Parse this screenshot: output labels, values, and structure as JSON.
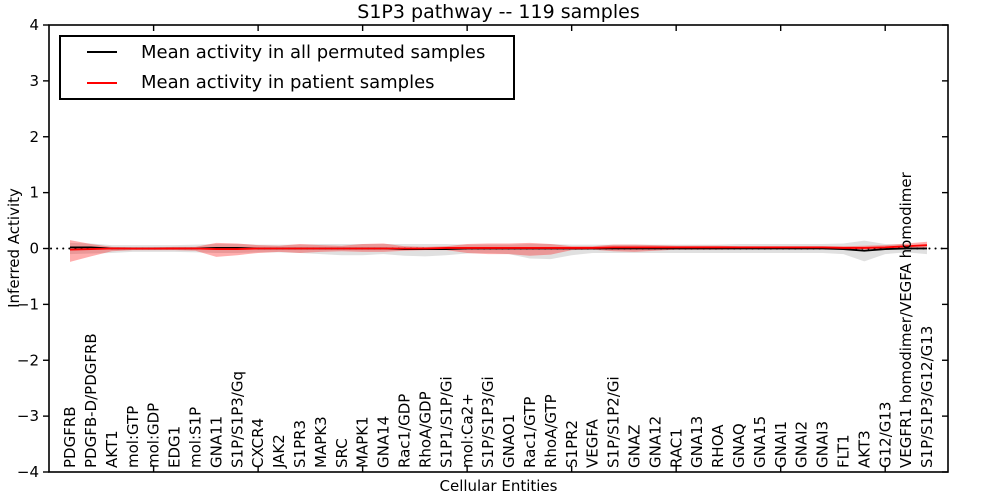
{
  "chart_data": {
    "type": "line",
    "title": "S1P3 pathway -- 119 samples",
    "xlabel": "Cellular Entities",
    "ylabel": "Inferred Activity",
    "ylim": [
      -4,
      4
    ],
    "yticks": [
      4,
      3,
      2,
      1,
      0,
      -1,
      -2,
      -3,
      -4
    ],
    "ytick_labels": [
      "4",
      "3",
      "2",
      "1",
      "0",
      "−1",
      "−2",
      "−3",
      "−4"
    ],
    "grid": false,
    "legend_position": "upper left",
    "zero_line": {
      "style": "dotted",
      "color": "#000000",
      "y": 0
    },
    "categories": [
      "PDGFRB",
      "PDGFB-D/PDGFRB",
      "AKT1",
      "mol:GTP",
      "mol:GDP",
      "EDG1",
      "mol:S1P",
      "GNA11",
      "S1P/S1P3/Gq",
      "CXCR4",
      "JAK2",
      "S1PR3",
      "MAPK3",
      "SRC",
      "MAPK1",
      "GNA14",
      "Rac1/GDP",
      "RhoA/GDP",
      "S1P1/S1P/Gi",
      "mol:Ca2+",
      "S1P/S1P3/Gi",
      "GNAO1",
      "Rac1/GTP",
      "RhoA/GTP",
      "S1PR2",
      "VEGFA",
      "S1P/S1P2/Gi",
      "GNAZ",
      "GNA12",
      "RAC1",
      "GNA13",
      "RHOA",
      "GNAQ",
      "GNA15",
      "GNAI1",
      "GNAI2",
      "GNAI3",
      "FLT1",
      "AKT3",
      "G12/G13",
      "VEGFR1 homodimer/VEGFA homodimer",
      "S1P/S1P3/G12/G13"
    ],
    "series": [
      {
        "name": "Mean activity in all permuted samples",
        "color": "#000000",
        "band_fill": "rgba(0,0,0,0.12)",
        "values": [
          0.02,
          0.02,
          0,
          0,
          0,
          0,
          0,
          0.01,
          0.01,
          0,
          0,
          0,
          0,
          0,
          0,
          0,
          -0.01,
          -0.01,
          -0.01,
          0,
          0,
          0,
          0,
          0,
          0,
          0,
          0,
          0,
          0,
          0,
          0,
          0,
          0,
          0,
          0,
          0,
          0,
          -0.01,
          -0.04,
          -0.01,
          0,
          0
        ],
        "band_lower": [
          -0.1,
          -0.09,
          -0.08,
          -0.06,
          -0.06,
          -0.06,
          -0.07,
          -0.08,
          -0.08,
          -0.07,
          -0.07,
          -0.08,
          -0.1,
          -0.12,
          -0.12,
          -0.1,
          -0.13,
          -0.14,
          -0.12,
          -0.09,
          -0.08,
          -0.1,
          -0.18,
          -0.19,
          -0.12,
          -0.08,
          -0.08,
          -0.08,
          -0.08,
          -0.08,
          -0.08,
          -0.08,
          -0.08,
          -0.08,
          -0.08,
          -0.08,
          -0.08,
          -0.1,
          -0.23,
          -0.1,
          -0.07,
          -0.1
        ],
        "band_upper": [
          0.1,
          0.09,
          0.06,
          0.06,
          0.06,
          0.06,
          0.07,
          0.08,
          0.08,
          0.07,
          0.07,
          0.07,
          0.08,
          0.08,
          0.08,
          0.08,
          0.08,
          0.08,
          0.08,
          0.07,
          0.07,
          0.07,
          0.08,
          0.08,
          0.07,
          0.07,
          0.07,
          0.07,
          0.07,
          0.07,
          0.07,
          0.07,
          0.08,
          0.08,
          0.08,
          0.08,
          0.08,
          0.09,
          0.14,
          0.08,
          0.07,
          0.06
        ]
      },
      {
        "name": "Mean activity in patient samples",
        "color": "#ff0000",
        "band_fill": "rgba(255,0,0,0.32)",
        "values": [
          -0.02,
          -0.01,
          0,
          0,
          0,
          0,
          0,
          -0.01,
          -0.01,
          0,
          0,
          0,
          0,
          0,
          0,
          0,
          0,
          0,
          0.01,
          0.01,
          0.01,
          0.01,
          0.01,
          0.01,
          0.01,
          0.01,
          0.02,
          0.02,
          0.02,
          0.02,
          0.02,
          0.02,
          0.02,
          0.02,
          0.02,
          0.02,
          0.02,
          0.01,
          0.01,
          0.02,
          0.04,
          0.06
        ],
        "band_lower": [
          -0.24,
          -0.14,
          -0.05,
          -0.03,
          -0.03,
          -0.03,
          -0.04,
          -0.15,
          -0.12,
          -0.08,
          -0.06,
          -0.08,
          -0.06,
          -0.05,
          -0.06,
          -0.06,
          -0.04,
          -0.03,
          -0.03,
          -0.08,
          -0.1,
          -0.1,
          -0.13,
          -0.11,
          -0.03,
          -0.02,
          -0.05,
          -0.06,
          -0.04,
          -0.02,
          -0.02,
          -0.02,
          -0.01,
          -0.01,
          -0.01,
          -0.01,
          -0.01,
          -0.02,
          -0.02,
          0.0,
          0.0,
          0.01
        ],
        "band_upper": [
          0.15,
          0.08,
          0.03,
          0.02,
          0.02,
          0.03,
          0.03,
          0.1,
          0.09,
          0.06,
          0.05,
          0.08,
          0.06,
          0.05,
          0.08,
          0.09,
          0.04,
          0.03,
          0.04,
          0.08,
          0.09,
          0.09,
          0.1,
          0.08,
          0.04,
          0.04,
          0.07,
          0.07,
          0.06,
          0.05,
          0.05,
          0.05,
          0.04,
          0.04,
          0.04,
          0.04,
          0.04,
          0.04,
          0.05,
          0.06,
          0.09,
          0.12
        ]
      }
    ]
  }
}
